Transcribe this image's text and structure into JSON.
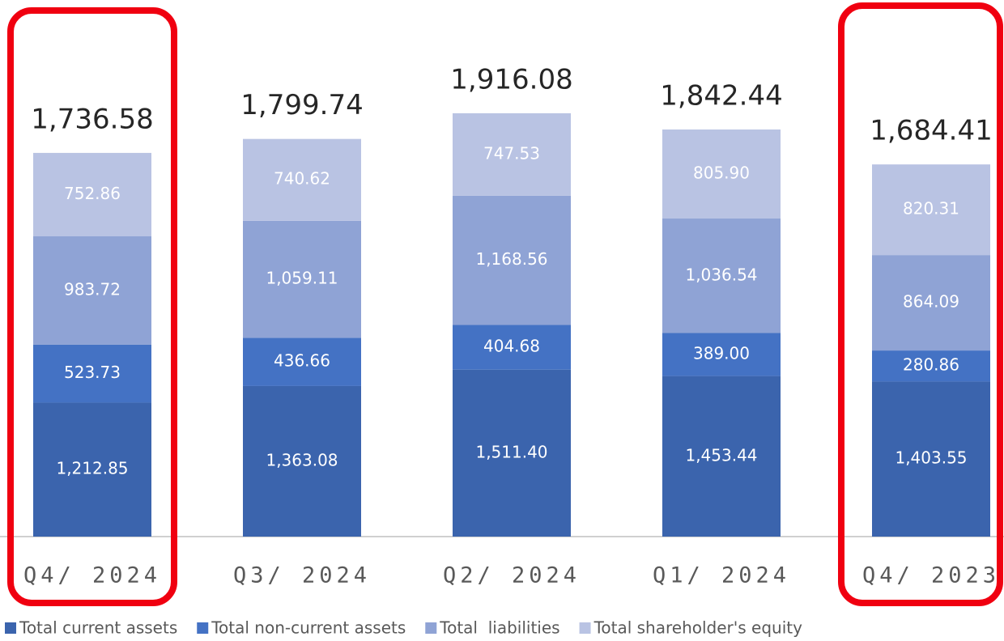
{
  "chart_data": {
    "type": "stacked_bar",
    "categories": [
      "Q4/ 2024",
      "Q3/ 2024",
      "Q2/ 2024",
      "Q1/ 2024",
      "Q4/ 2023"
    ],
    "series": [
      {
        "name": "Total current assets",
        "color": "#3b64ad",
        "values": [
          1212.85,
          1363.08,
          1511.4,
          1453.44,
          1403.55
        ],
        "value_labels": [
          "1,212.85",
          "1,363.08",
          "1,511.40",
          "1,453.44",
          "1,403.55"
        ]
      },
      {
        "name": "Total non-current assets",
        "color": "#4472c4",
        "values": [
          523.73,
          436.66,
          404.68,
          389.0,
          280.86
        ],
        "value_labels": [
          "523.73",
          "436.66",
          "404.68",
          "389.00",
          "280.86"
        ]
      },
      {
        "name": "Total  liabilities",
        "color": "#8fa3d5",
        "values": [
          983.72,
          1059.11,
          1168.56,
          1036.54,
          864.09
        ],
        "value_labels": [
          "983.72",
          "1,059.11",
          "1,168.56",
          "1,036.54",
          "864.09"
        ]
      },
      {
        "name": "Total shareholder's equity",
        "color": "#b9c3e3",
        "values": [
          752.86,
          740.62,
          747.53,
          805.9,
          820.31
        ],
        "value_labels": [
          "752.86",
          "740.62",
          "747.53",
          "805.90",
          "820.31"
        ]
      }
    ],
    "totals": {
      "values": [
        1736.58,
        1799.74,
        1916.08,
        1842.44,
        1684.41
      ],
      "value_labels": [
        "1,736.58",
        "1,799.74",
        "1,916.08",
        "1,842.44",
        "1,684.41"
      ]
    },
    "ylim": [
      0,
      4000
    ]
  }
}
